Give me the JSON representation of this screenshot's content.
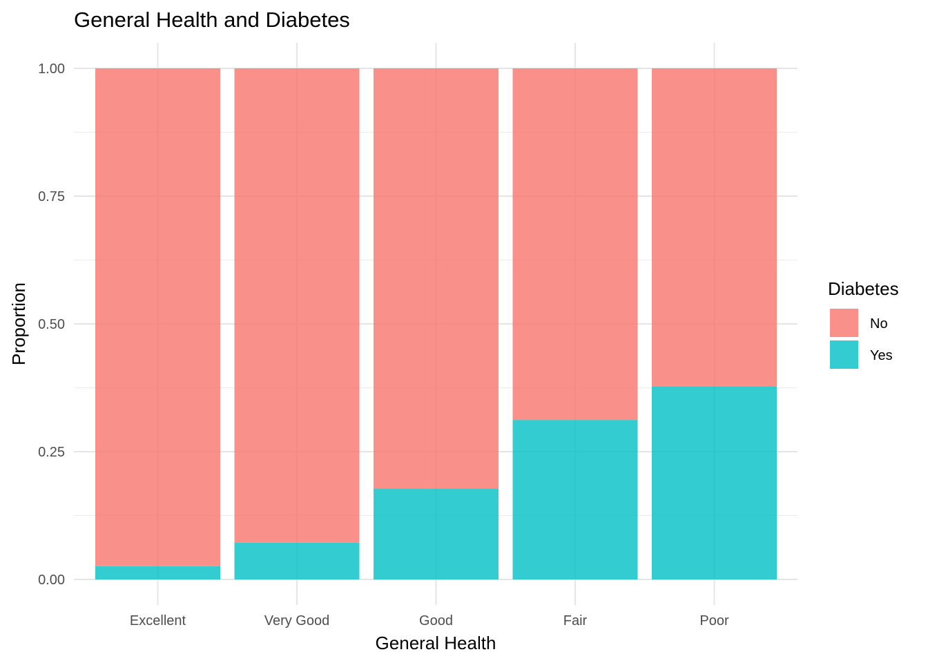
{
  "chart_data": {
    "type": "bar",
    "stacked": true,
    "title": "General Health and Diabetes",
    "xlabel": "General Health",
    "ylabel": "Proportion",
    "categories": [
      "Excellent",
      "Very Good",
      "Good",
      "Fair",
      "Poor"
    ],
    "series": [
      {
        "name": "Yes",
        "values": [
          0.026,
          0.072,
          0.178,
          0.312,
          0.378
        ]
      },
      {
        "name": "No",
        "values": [
          0.974,
          0.928,
          0.822,
          0.688,
          0.622
        ]
      }
    ],
    "ylim": [
      0,
      1
    ],
    "yticks": [
      "0.00",
      "0.25",
      "0.50",
      "0.75",
      "1.00"
    ],
    "ytick_values": [
      0,
      0.25,
      0.5,
      0.75,
      1
    ],
    "grid": true,
    "legend": {
      "title": "Diabetes",
      "placement": "right",
      "entries": [
        {
          "label": "No",
          "color": "#F8766D"
        },
        {
          "label": "Yes",
          "color": "#00BFC4"
        }
      ]
    },
    "colors": {
      "No": "#F8766D",
      "Yes": "#00BFC4"
    }
  }
}
